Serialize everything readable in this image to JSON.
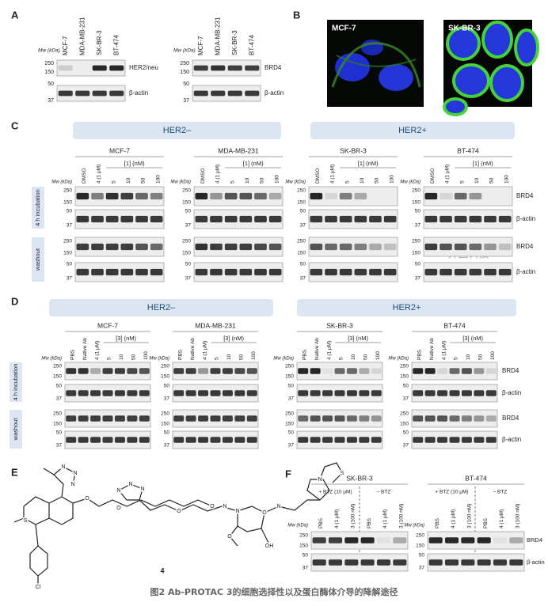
{
  "panel_a": {
    "label": "A",
    "mw": "Mw (kDa)",
    "groups": [
      {
        "lanes": [
          "MCF-7",
          "MDA-MB-231",
          "SK-BR-3",
          "BT-474"
        ],
        "markers": [
          250,
          150,
          50,
          37
        ],
        "blots": [
          "HER2/neu",
          "β-actin"
        ]
      },
      {
        "lanes": [
          "MCF-7",
          "MDA-MB-231",
          "SK-BR-3",
          "BT-474"
        ],
        "markers": [
          250,
          150,
          50,
          37
        ],
        "blots": [
          "BRD4",
          "β-actin"
        ]
      }
    ]
  },
  "panel_b": {
    "label": "B",
    "images": [
      "MCF-7",
      "SK-BR-3"
    ]
  },
  "panel_c": {
    "label": "C",
    "headers": [
      "HER2–",
      "HER2+"
    ],
    "cell_lines": [
      "MCF-7",
      "MDA-MB-231",
      "SK-BR-3",
      "BT-474"
    ],
    "lanes": [
      "DMSO",
      "4 (1 μM)",
      "5",
      "10",
      "50",
      "100"
    ],
    "dose_label": "[1] (nM)",
    "mw": "Mw (kDa)",
    "markers": [
      250,
      150,
      50,
      37
    ],
    "conditions": [
      "4 h incubation",
      "washout"
    ],
    "blots": [
      "BRD4",
      "β-actin"
    ]
  },
  "panel_d": {
    "label": "D",
    "headers": [
      "HER2–",
      "HER2+"
    ],
    "cell_lines": [
      "MCF-7",
      "MDA-MB-231",
      "SK-BR-3",
      "BT-474"
    ],
    "lanes": [
      "PBS",
      "Native Ab",
      "4 (1 μM)",
      "5",
      "10",
      "50",
      "100"
    ],
    "dose_label": "[3] (nM)",
    "mw": "Mw (kDa)",
    "markers": [
      250,
      150,
      50,
      37
    ],
    "conditions": [
      "4 h incubation",
      "washout"
    ],
    "blots": [
      "BRD4",
      "β-actin"
    ]
  },
  "panel_e": {
    "label": "E",
    "compound": "4",
    "atoms": [
      "N",
      "N",
      "N",
      "S",
      "Cl",
      "O",
      "O",
      "N",
      "N",
      "N",
      "O",
      "O",
      "N",
      "N",
      "O",
      "OH",
      "N",
      "S",
      "N",
      "O"
    ]
  },
  "panel_f": {
    "label": "F",
    "cell_lines": [
      "SK-BR-3",
      "BT-474"
    ],
    "treatments": [
      "+ BTZ (10 μM)",
      "– BTZ"
    ],
    "lanes": [
      "PBS",
      "4 (1 μM)",
      "3 (100 nM)",
      "PBS",
      "4 (1 μM)",
      "3 (100 nM)"
    ],
    "mw": "Mw (kDa)",
    "markers": [
      250,
      150,
      50,
      37
    ],
    "blots": [
      "BRD4",
      "β-actin"
    ]
  },
  "watermark": "一介西科技",
  "caption": "图2 Ab-PROTAC 3的细胞选择性以及蛋白酶体介导的降解途径"
}
